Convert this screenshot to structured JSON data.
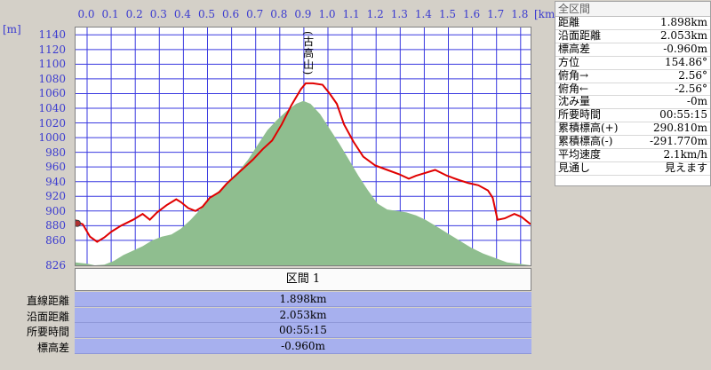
{
  "distance_axis": {
    "unit": "[km]",
    "ticks": [
      "0.0",
      "0.1",
      "0.2",
      "0.3",
      "0.4",
      "0.5",
      "0.6",
      "0.7",
      "0.8",
      "0.9",
      "1.0",
      "1.1",
      "1.2",
      "1.3",
      "1.4",
      "1.5",
      "1.6",
      "1.7",
      "1.8"
    ]
  },
  "elevation_axis": {
    "unit": "[m]",
    "ticks": [
      "1140",
      "1120",
      "1100",
      "1080",
      "1060",
      "1040",
      "1020",
      "1000",
      "980",
      "960",
      "940",
      "920",
      "900",
      "880",
      "860",
      "826"
    ]
  },
  "summit_label": "(古高山)",
  "chart_data": {
    "type": "line",
    "title": "",
    "xlabel": "[km]",
    "ylabel": "[m]",
    "xlim": [
      0,
      1.898
    ],
    "ylim": [
      826,
      1150
    ],
    "grid": true,
    "series": [
      {
        "name": "",
        "color": "#e00000",
        "points": [
          [
            0.0,
            888
          ],
          [
            0.01,
            884
          ],
          [
            0.03,
            882
          ],
          [
            0.06,
            865
          ],
          [
            0.09,
            858
          ],
          [
            0.12,
            864
          ],
          [
            0.15,
            872
          ],
          [
            0.19,
            880
          ],
          [
            0.24,
            888
          ],
          [
            0.28,
            896
          ],
          [
            0.31,
            888
          ],
          [
            0.34,
            898
          ],
          [
            0.38,
            908
          ],
          [
            0.42,
            916
          ],
          [
            0.44,
            912
          ],
          [
            0.47,
            904
          ],
          [
            0.5,
            900
          ],
          [
            0.53,
            906
          ],
          [
            0.56,
            918
          ],
          [
            0.6,
            926
          ],
          [
            0.63,
            937
          ],
          [
            0.66,
            946
          ],
          [
            0.7,
            958
          ],
          [
            0.74,
            970
          ],
          [
            0.78,
            984
          ],
          [
            0.82,
            996
          ],
          [
            0.86,
            1018
          ],
          [
            0.9,
            1044
          ],
          [
            0.94,
            1066
          ],
          [
            0.96,
            1074
          ],
          [
            0.99,
            1074
          ],
          [
            1.03,
            1072
          ],
          [
            1.06,
            1060
          ],
          [
            1.09,
            1046
          ],
          [
            1.12,
            1018
          ],
          [
            1.16,
            994
          ],
          [
            1.2,
            974
          ],
          [
            1.25,
            962
          ],
          [
            1.3,
            956
          ],
          [
            1.35,
            950
          ],
          [
            1.39,
            944
          ],
          [
            1.42,
            948
          ],
          [
            1.46,
            952
          ],
          [
            1.5,
            956
          ],
          [
            1.55,
            948
          ],
          [
            1.6,
            942
          ],
          [
            1.64,
            938
          ],
          [
            1.68,
            935
          ],
          [
            1.72,
            928
          ],
          [
            1.74,
            918
          ],
          [
            1.76,
            888
          ],
          [
            1.79,
            890
          ],
          [
            1.83,
            896
          ],
          [
            1.86,
            892
          ],
          [
            1.898,
            882
          ]
        ]
      },
      {
        "name": "",
        "color": "#8fbe8f",
        "points": [
          [
            0.0,
            830
          ],
          [
            0.05,
            828
          ],
          [
            0.08,
            826
          ],
          [
            0.12,
            827
          ],
          [
            0.16,
            832
          ],
          [
            0.2,
            840
          ],
          [
            0.24,
            846
          ],
          [
            0.28,
            852
          ],
          [
            0.32,
            860
          ],
          [
            0.36,
            865
          ],
          [
            0.4,
            868
          ],
          [
            0.44,
            876
          ],
          [
            0.48,
            888
          ],
          [
            0.52,
            902
          ],
          [
            0.56,
            916
          ],
          [
            0.6,
            928
          ],
          [
            0.64,
            942
          ],
          [
            0.68,
            954
          ],
          [
            0.72,
            970
          ],
          [
            0.76,
            990
          ],
          [
            0.8,
            1010
          ],
          [
            0.84,
            1024
          ],
          [
            0.88,
            1036
          ],
          [
            0.92,
            1046
          ],
          [
            0.95,
            1050
          ],
          [
            0.98,
            1046
          ],
          [
            1.02,
            1032
          ],
          [
            1.06,
            1012
          ],
          [
            1.1,
            992
          ],
          [
            1.14,
            970
          ],
          [
            1.18,
            948
          ],
          [
            1.22,
            928
          ],
          [
            1.26,
            910
          ],
          [
            1.3,
            902
          ],
          [
            1.34,
            900
          ],
          [
            1.38,
            898
          ],
          [
            1.42,
            894
          ],
          [
            1.46,
            888
          ],
          [
            1.5,
            880
          ],
          [
            1.55,
            870
          ],
          [
            1.6,
            860
          ],
          [
            1.65,
            850
          ],
          [
            1.7,
            842
          ],
          [
            1.75,
            836
          ],
          [
            1.8,
            830
          ],
          [
            1.85,
            828
          ],
          [
            1.898,
            826
          ]
        ]
      }
    ],
    "annotations": [
      {
        "x": 0.97,
        "text": "(古高山)"
      }
    ]
  },
  "panel": {
    "title": "全区間",
    "rows": [
      {
        "label": "距離",
        "value": "1.898km"
      },
      {
        "label": "沿面距離",
        "value": "2.053km"
      },
      {
        "label": "標高差",
        "value": "-0.960m"
      },
      {
        "label": "方位",
        "value": "154.86°"
      },
      {
        "label": "俯角→",
        "value": "2.56°"
      },
      {
        "label": "俯角←",
        "value": "-2.56°"
      },
      {
        "label": "沈み量",
        "value": "-0m"
      },
      {
        "label": "所要時間",
        "value": "00:55:15"
      },
      {
        "label": "累積標高(+)",
        "value": "290.810m"
      },
      {
        "label": "累積標高(-)",
        "value": "-291.770m"
      },
      {
        "label": "平均速度",
        "value": "2.1km/h"
      },
      {
        "label": "見通し",
        "value": "見えます"
      }
    ]
  },
  "section": {
    "title": "区間 1",
    "rows": [
      {
        "label": "直線距離",
        "value": "1.898km"
      },
      {
        "label": "沿面距離",
        "value": "2.053km"
      },
      {
        "label": "所要時間",
        "value": "00:55:15"
      },
      {
        "label": "標高差",
        "value": "-0.960m"
      }
    ]
  }
}
